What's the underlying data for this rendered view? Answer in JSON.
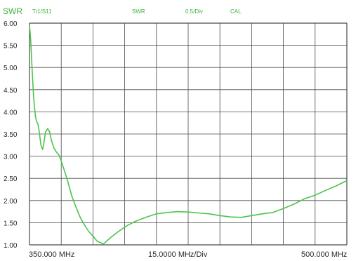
{
  "header": {
    "measure": "SWR",
    "trace": "Tr1/S11",
    "format": "SWR",
    "scale": "0.5/Div",
    "cal": "CAL"
  },
  "colors": {
    "accent_text": "#3cb33c",
    "trace": "#4cc44c",
    "grid": "#4a4a4a",
    "axis_text": "#2a2a2a"
  },
  "chart_data": {
    "type": "line",
    "title": "",
    "xlabel": "15.0000 MHz/Div",
    "ylabel": "SWR",
    "x_start_label": "350.000 MHz",
    "x_stop_label": "500.000 MHz",
    "xlim": [
      350,
      500
    ],
    "ylim": [
      1.0,
      6.0
    ],
    "y_ticks": [
      "1.00",
      "1.50",
      "2.00",
      "2.50",
      "3.00",
      "3.50",
      "4.00",
      "4.50",
      "5.00",
      "5.50",
      "6.00"
    ],
    "x_divisions": 10,
    "grid": true,
    "series": [
      {
        "x": [
          350.0,
          350.6,
          351.2,
          352.0,
          352.8,
          353.4,
          354.0,
          354.6,
          355.4,
          356.2,
          356.8,
          357.6,
          358.6,
          359.5,
          360.4,
          361.6,
          362.6,
          364.0,
          366.0,
          368.0,
          370.0,
          372.0,
          374.0,
          376.0,
          378.0,
          380.0,
          382.0,
          385.0,
          388.0,
          392.0,
          396.0,
          400.0,
          405.0,
          410.0,
          415.0,
          420.0,
          425.0,
          430.0,
          435.0,
          440.0,
          445.0,
          450.0,
          455.0,
          460.0,
          465.0,
          470.0,
          475.0,
          480.0,
          485.0,
          490.0,
          495.0,
          500.0
        ],
        "y": [
          5.95,
          5.6,
          5.0,
          4.3,
          3.9,
          3.78,
          3.72,
          3.55,
          3.25,
          3.15,
          3.3,
          3.55,
          3.62,
          3.55,
          3.35,
          3.18,
          3.1,
          3.02,
          2.75,
          2.45,
          2.1,
          1.85,
          1.62,
          1.45,
          1.3,
          1.2,
          1.08,
          1.02,
          1.15,
          1.3,
          1.43,
          1.53,
          1.62,
          1.7,
          1.73,
          1.75,
          1.74,
          1.72,
          1.7,
          1.66,
          1.63,
          1.62,
          1.66,
          1.7,
          1.73,
          1.82,
          1.92,
          2.04,
          2.12,
          2.23,
          2.33,
          2.45
        ]
      }
    ]
  }
}
